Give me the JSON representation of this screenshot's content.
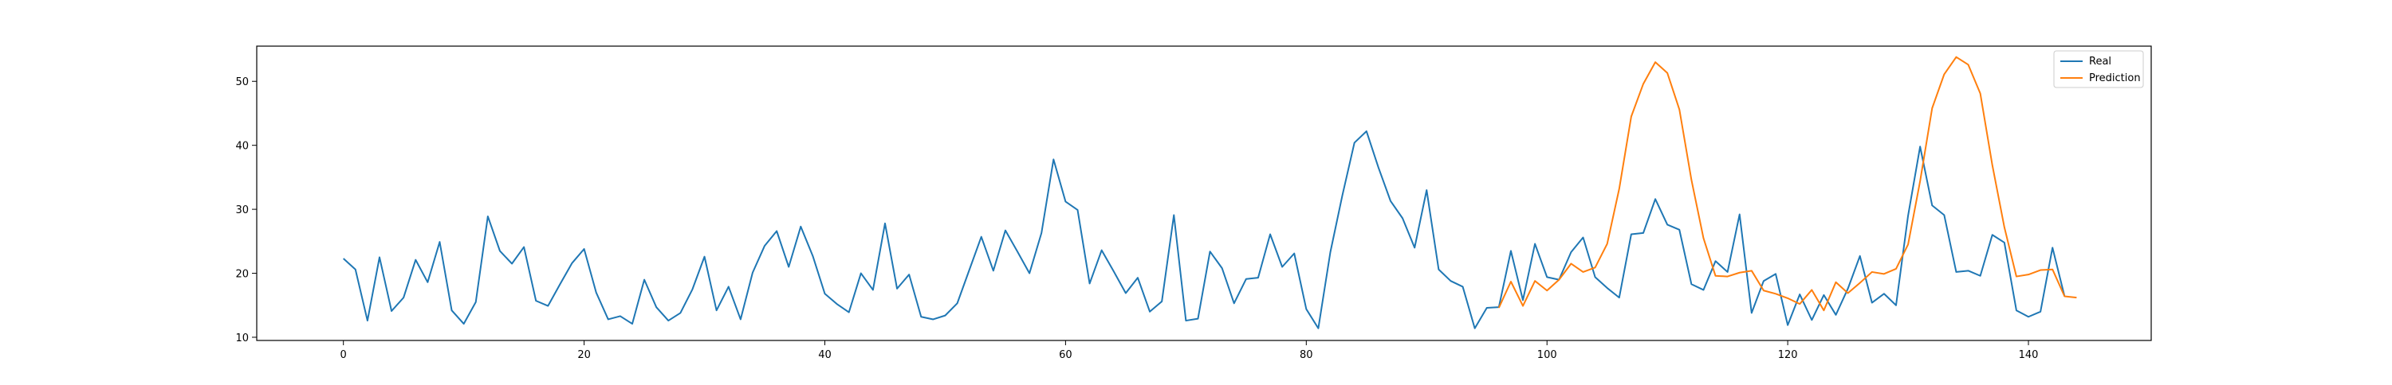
{
  "chart_data": {
    "type": "line",
    "title": "",
    "xlabel": "",
    "ylabel": "",
    "xlim": [
      -7.2,
      150.2
    ],
    "ylim": [
      9.5,
      55.5
    ],
    "xticks": [
      0,
      20,
      40,
      60,
      80,
      100,
      120,
      140
    ],
    "yticks": [
      10,
      20,
      30,
      40,
      50
    ],
    "grid": false,
    "legend": {
      "position": "top-right",
      "entries": [
        "Real",
        "Prediction"
      ]
    },
    "series": [
      {
        "name": "Real",
        "color": "#1f77b4",
        "x_start": 0,
        "values": [
          22.3,
          20.6,
          12.6,
          22.5,
          14.1,
          16.2,
          22.1,
          18.6,
          24.9,
          14.2,
          12.1,
          15.5,
          28.9,
          23.5,
          21.5,
          24.1,
          15.7,
          14.9,
          18.3,
          21.6,
          23.8,
          17.0,
          12.8,
          13.3,
          12.1,
          19.0,
          14.7,
          12.6,
          13.8,
          17.5,
          22.6,
          14.2,
          17.9,
          12.8,
          20.1,
          24.3,
          26.6,
          21.0,
          27.3,
          22.7,
          16.8,
          15.2,
          13.9,
          20.0,
          17.4,
          27.8,
          17.6,
          19.8,
          13.2,
          12.8,
          13.4,
          15.3,
          20.5,
          25.7,
          20.4,
          26.7,
          23.4,
          20.0,
          26.3,
          37.8,
          31.2,
          29.9,
          18.4,
          23.6,
          20.3,
          16.9,
          19.3,
          14.0,
          15.6,
          29.1,
          12.6,
          12.9,
          23.4,
          20.8,
          15.3,
          19.1,
          19.3,
          26.1,
          21.0,
          23.1,
          14.4,
          11.4,
          23.3,
          32.2,
          40.4,
          42.2,
          36.5,
          31.3,
          28.6,
          24.0,
          33.0,
          20.6,
          18.8,
          17.9,
          11.4,
          14.6,
          14.7,
          23.5,
          15.8,
          24.6,
          19.4,
          19.0,
          23.3,
          25.6,
          19.4,
          17.7,
          16.2,
          26.1,
          26.3,
          31.6,
          27.6,
          26.8,
          18.3,
          17.4,
          21.9,
          20.2,
          29.2,
          13.8,
          18.8,
          19.9,
          11.9,
          16.7,
          12.7,
          16.6,
          13.5,
          17.6,
          22.7,
          15.4,
          16.8,
          15.0,
          29.0,
          39.8,
          30.6,
          29.1,
          20.2,
          20.4,
          19.6,
          26.0,
          24.8,
          14.2,
          13.2,
          14.0,
          24.0,
          16.4
        ]
      },
      {
        "name": "Prediction",
        "color": "#ff7f0e",
        "x_start": 96,
        "values": [
          14.6,
          18.7,
          14.9,
          18.8,
          17.3,
          19.0,
          21.5,
          20.2,
          20.9,
          24.6,
          33.2,
          44.5,
          49.6,
          53.0,
          51.3,
          45.6,
          34.6,
          25.5,
          19.6,
          19.5,
          20.1,
          20.4,
          17.3,
          16.8,
          16.1,
          15.2,
          17.4,
          14.2,
          18.6,
          16.9,
          18.5,
          20.2,
          19.9,
          20.7,
          24.5,
          34.4,
          45.8,
          51.1,
          53.8,
          52.6,
          48.1,
          36.9,
          27.2,
          19.5,
          19.8,
          20.5,
          20.6,
          16.4,
          16.2
        ]
      }
    ]
  }
}
